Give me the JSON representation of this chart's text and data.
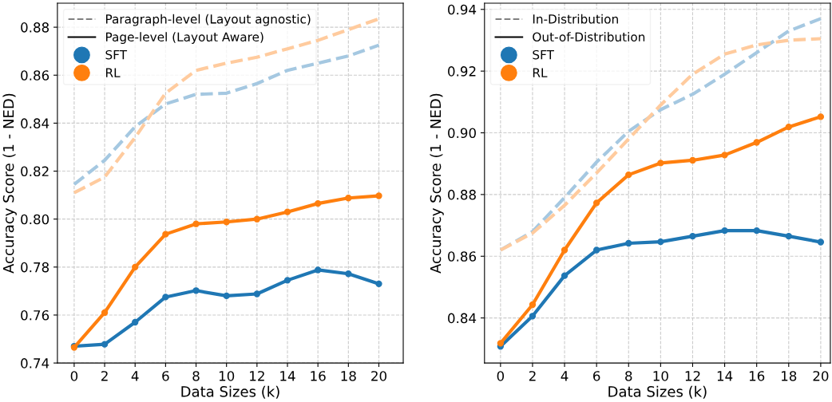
{
  "chart_data": [
    {
      "type": "line",
      "xlabel": "Data Sizes (k)",
      "ylabel": "Accuracy Score (1 - NED)",
      "x": [
        0,
        2,
        4,
        6,
        8,
        10,
        12,
        14,
        16,
        18,
        20
      ],
      "xlim": [
        -1.1,
        21.6
      ],
      "xticks": [
        0,
        2,
        4,
        6,
        8,
        10,
        12,
        14,
        16,
        18,
        20
      ],
      "ylim": [
        0.74,
        0.89
      ],
      "yticks": [
        {
          "value": 0.74,
          "label": "0.74"
        },
        {
          "value": 0.76,
          "label": "0.76"
        },
        {
          "value": 0.78,
          "label": "0.78"
        },
        {
          "value": 0.8,
          "label": "0.80"
        },
        {
          "value": 0.82,
          "label": "0.82"
        },
        {
          "value": 0.84,
          "label": "0.84"
        },
        {
          "value": 0.86,
          "label": "0.86"
        },
        {
          "value": 0.88,
          "label": "0.88"
        }
      ],
      "grid": true,
      "legend": "top left",
      "series": [
        {
          "color": "#a5c8e1",
          "line_style": "dashed",
          "marker": "none",
          "values": [
            0.8145,
            0.8245,
            0.8385,
            0.848,
            0.852,
            0.8525,
            0.8565,
            0.862,
            0.865,
            0.868,
            0.8725
          ]
        },
        {
          "color": "#ffcb9e",
          "line_style": "dashed",
          "marker": "none",
          "values": [
            0.811,
            0.8175,
            0.834,
            0.8525,
            0.862,
            0.865,
            0.8675,
            0.871,
            0.8745,
            0.879,
            0.8835
          ]
        },
        {
          "color": "#1f77b4",
          "line_style": "solid",
          "marker": "circle",
          "values": [
            0.747,
            0.7478,
            0.757,
            0.7675,
            0.7702,
            0.768,
            0.7688,
            0.7745,
            0.7788,
            0.7772,
            0.773
          ]
        },
        {
          "color": "#ff7f0e",
          "line_style": "solid",
          "marker": "circle",
          "values": [
            0.7465,
            0.761,
            0.78,
            0.7937,
            0.798,
            0.7988,
            0.8,
            0.803,
            0.8065,
            0.8088,
            0.8097
          ]
        },
        {
          "name": "Paragraph-level (Layout agnostic)",
          "color": "#808080",
          "line_style": "dashed",
          "marker": "none",
          "values": [
            null,
            null,
            null,
            null,
            null,
            null,
            null,
            null,
            null,
            null,
            null
          ]
        },
        {
          "name": "Page-level (Layout Aware)",
          "color": "#000000",
          "line_style": "solid",
          "marker": "none",
          "values": [
            null,
            null,
            null,
            null,
            null,
            null,
            null,
            null,
            null,
            null,
            null
          ]
        },
        {
          "name": "SFT",
          "color": "#1f77b4",
          "line_style": "none",
          "marker": "circle",
          "values": [
            null,
            null,
            null,
            null,
            null,
            null,
            null,
            null,
            null,
            null,
            null
          ]
        },
        {
          "name": "RL",
          "color": "#ff7f0e",
          "line_style": "none",
          "marker": "circle",
          "values": [
            null,
            null,
            null,
            null,
            null,
            null,
            null,
            null,
            null,
            null,
            null
          ]
        }
      ]
    },
    {
      "type": "line",
      "xlabel": "Data Sizes (k)",
      "ylabel": "Accuracy Score (1 - NED)",
      "x": [
        0,
        2,
        4,
        6,
        8,
        10,
        12,
        14,
        16,
        18,
        20
      ],
      "xlim": [
        -1.0,
        20.6
      ],
      "xticks": [
        0,
        2,
        4,
        6,
        8,
        10,
        12,
        14,
        16,
        18,
        20
      ],
      "ylim": [
        0.8254,
        0.942
      ],
      "yticks": [
        {
          "value": 0.84,
          "label": "0.84"
        },
        {
          "value": 0.86,
          "label": "0.86"
        },
        {
          "value": 0.88,
          "label": "0.88"
        },
        {
          "value": 0.9,
          "label": "0.90"
        },
        {
          "value": 0.92,
          "label": "0.92"
        },
        {
          "value": 0.94,
          "label": "0.94"
        }
      ],
      "grid": true,
      "legend": "top left",
      "series": [
        {
          "color": "#a5c8e1",
          "line_style": "dashed",
          "marker": "none",
          "values": [
            0.862,
            0.868,
            0.879,
            0.8905,
            0.9005,
            0.9075,
            0.9125,
            0.919,
            0.926,
            0.933,
            0.937
          ]
        },
        {
          "color": "#ffcb9e",
          "line_style": "dashed",
          "marker": "none",
          "values": [
            0.862,
            0.8675,
            0.8765,
            0.887,
            0.898,
            0.909,
            0.919,
            0.9255,
            0.9285,
            0.93,
            0.9305
          ]
        },
        {
          "color": "#1f77b4",
          "line_style": "solid",
          "marker": "circle",
          "values": [
            0.8308,
            0.8406,
            0.8537,
            0.862,
            0.8642,
            0.8647,
            0.8665,
            0.8683,
            0.8683,
            0.8665,
            0.8646
          ]
        },
        {
          "color": "#ff7f0e",
          "line_style": "solid",
          "marker": "circle",
          "values": [
            0.8318,
            0.8443,
            0.862,
            0.8773,
            0.8864,
            0.8902,
            0.8911,
            0.8928,
            0.8969,
            0.9019,
            0.9052
          ]
        },
        {
          "name": "In-Distribution",
          "color": "#808080",
          "line_style": "dashed",
          "marker": "none",
          "values": [
            null,
            null,
            null,
            null,
            null,
            null,
            null,
            null,
            null,
            null,
            null
          ]
        },
        {
          "name": "Out-of-Distribution",
          "color": "#000000",
          "line_style": "solid",
          "marker": "none",
          "values": [
            null,
            null,
            null,
            null,
            null,
            null,
            null,
            null,
            null,
            null,
            null
          ]
        },
        {
          "name": "SFT",
          "color": "#1f77b4",
          "line_style": "none",
          "marker": "circle",
          "values": [
            null,
            null,
            null,
            null,
            null,
            null,
            null,
            null,
            null,
            null,
            null
          ]
        },
        {
          "name": "RL",
          "color": "#ff7f0e",
          "line_style": "none",
          "marker": "circle",
          "values": [
            null,
            null,
            null,
            null,
            null,
            null,
            null,
            null,
            null,
            null,
            null
          ]
        }
      ]
    }
  ]
}
